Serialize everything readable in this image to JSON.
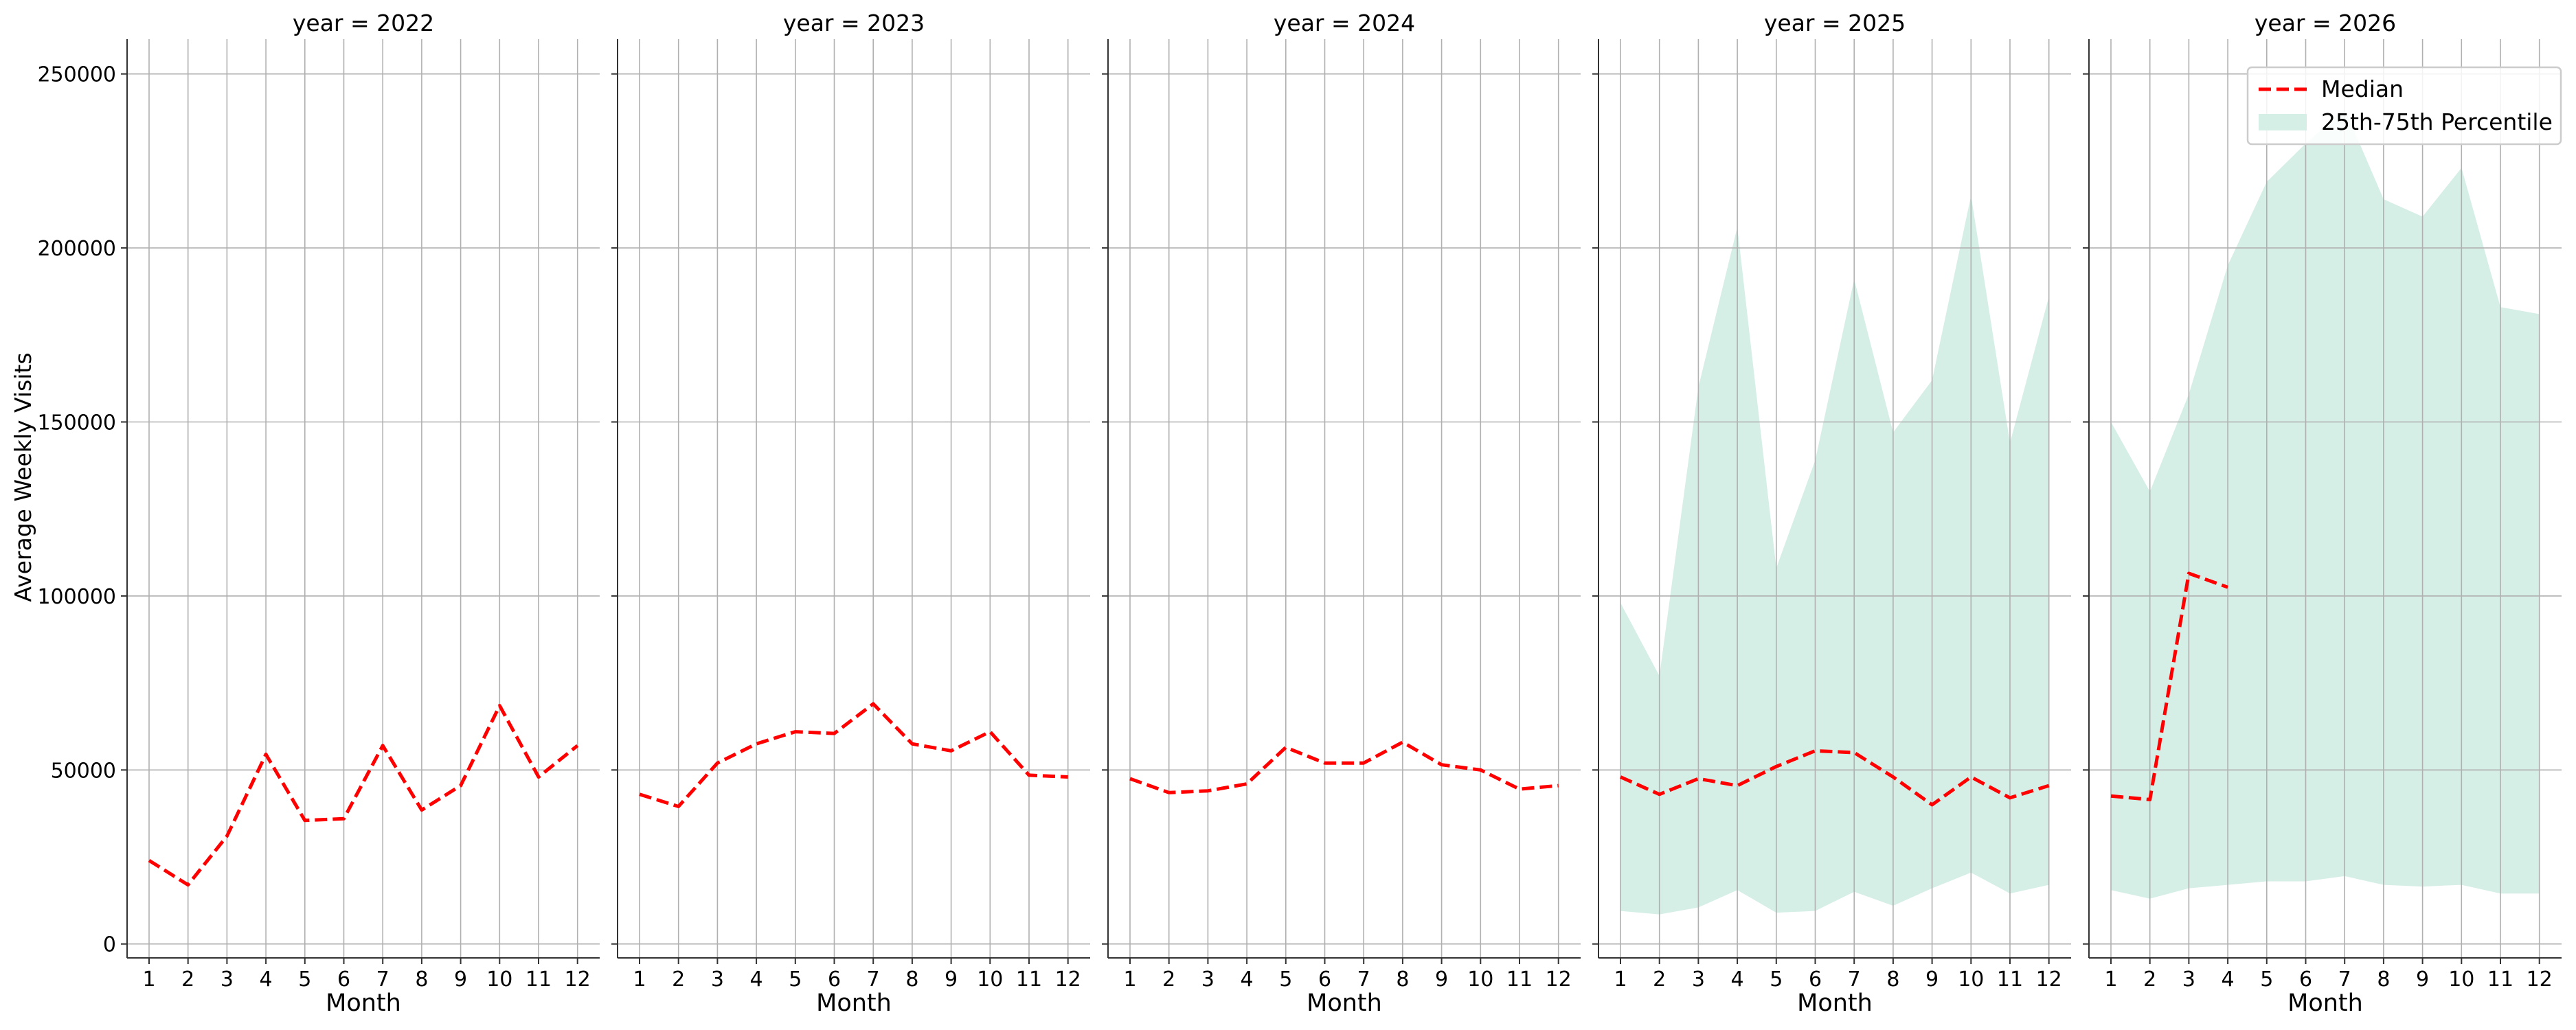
{
  "chart_data": {
    "type": "line",
    "ylabel": "Average Weekly Visits",
    "xlabel": "Month",
    "x": [
      1,
      2,
      3,
      4,
      5,
      6,
      7,
      8,
      9,
      10,
      11,
      12
    ],
    "ylim": [
      -4000,
      260000
    ],
    "yticks": [
      0,
      50000,
      100000,
      150000,
      200000,
      250000
    ],
    "grid": true,
    "legend": {
      "placement": "top-right",
      "median_label": "Median",
      "band_label": "25th-75th Percentile"
    },
    "colors": {
      "median": "#ff0000",
      "band": "#d5eee6",
      "grid": "#b0b0b0"
    },
    "panels": [
      {
        "title": "year = 2022",
        "median": [
          24000,
          17000,
          31000,
          54500,
          35500,
          36000,
          57000,
          38500,
          45500,
          68500,
          48000,
          57000
        ],
        "p25": null,
        "p75": null
      },
      {
        "title": "year = 2023",
        "median": [
          43000,
          39500,
          52000,
          57500,
          61000,
          60500,
          69000,
          57500,
          55500,
          61000,
          48500,
          48000
        ],
        "p25": null,
        "p75": null
      },
      {
        "title": "year = 2024",
        "median": [
          47500,
          43500,
          44000,
          46000,
          56500,
          52000,
          52000,
          58000,
          51500,
          50000,
          44500,
          45500
        ],
        "p25": null,
        "p75": null
      },
      {
        "title": "year = 2025",
        "median": [
          48000,
          43000,
          47500,
          45500,
          51000,
          55500,
          55000,
          48000,
          40000,
          48000,
          42000,
          45500
        ],
        "p25": [
          9500,
          8500,
          10500,
          15500,
          9000,
          9500,
          15000,
          11000,
          16000,
          20500,
          14500,
          17000
        ],
        "p75": [
          98000,
          77000,
          160000,
          206000,
          108000,
          139000,
          191000,
          147000,
          162000,
          215000,
          144000,
          186000
        ]
      },
      {
        "title": "year = 2026",
        "median": [
          42500,
          41500,
          106500,
          102500,
          null,
          null,
          null,
          null,
          null,
          null,
          null,
          null
        ],
        "p25": [
          15500,
          13000,
          16000,
          17000,
          18000,
          18000,
          19500,
          17000,
          16500,
          17000,
          14500,
          14500
        ],
        "p75": [
          150000,
          130000,
          158000,
          195000,
          219000,
          230000,
          240000,
          214000,
          209000,
          223000,
          183000,
          181000
        ]
      }
    ]
  }
}
